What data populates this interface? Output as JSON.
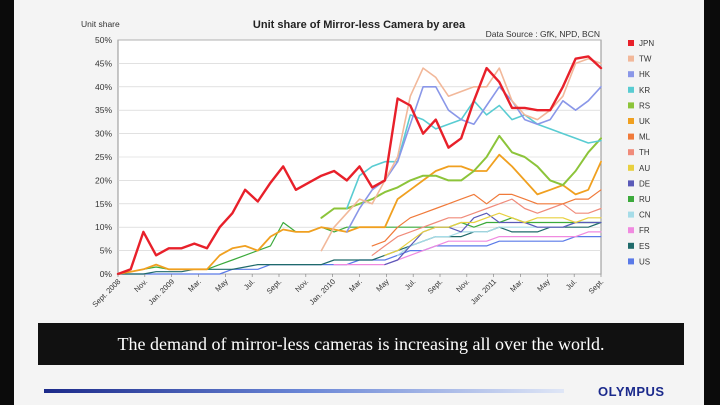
{
  "caption": "The demand of mirror-less cameras is increasing all over the world.",
  "brand": "OLYMPUS",
  "chart_data": {
    "type": "line",
    "title": "Unit share of Mirror-less Camera by area",
    "source": "Data Source : GfK, NPD, BCN",
    "ylabel": "Unit share",
    "ylim": [
      0,
      50
    ],
    "yticks": [
      "0%",
      "5%",
      "10%",
      "15%",
      "20%",
      "25%",
      "30%",
      "35%",
      "40%",
      "45%",
      "50%"
    ],
    "x_labels": [
      "Sept. 2008",
      "Nov.",
      "Jan. 2009",
      "Mar.",
      "May",
      "Jul.",
      "Sept.",
      "Nov.",
      "Jan. 2010",
      "Mar.",
      "May",
      "Jul.",
      "Sept.",
      "Nov.",
      "Jan. 2011",
      "Mar.",
      "May",
      "Jul.",
      "Sept."
    ],
    "grid": true,
    "legend": "right",
    "series": [
      {
        "name": "JPN",
        "color": "#e8202a",
        "values": [
          0,
          1,
          9,
          4,
          5.5,
          5.5,
          6.5,
          5.5,
          10,
          13,
          18,
          15.5,
          19.5,
          23,
          18,
          19.5,
          21,
          22,
          20,
          23,
          18.5,
          20,
          37.5,
          36,
          30,
          33,
          27,
          29,
          37,
          44,
          41,
          35.5,
          35.5,
          35,
          35,
          40,
          46,
          46.5,
          44
        ]
      },
      {
        "name": "TW",
        "color": "#f2b89a",
        "values": [
          null,
          null,
          null,
          null,
          null,
          null,
          null,
          null,
          null,
          null,
          null,
          null,
          null,
          null,
          null,
          null,
          5,
          10,
          13,
          16,
          15,
          20,
          25,
          38,
          44,
          42,
          38,
          39,
          40,
          40,
          44,
          37,
          34,
          33,
          35,
          38,
          45,
          46,
          45
        ]
      },
      {
        "name": "HK",
        "color": "#8a97e8",
        "values": [
          null,
          null,
          null,
          null,
          null,
          null,
          null,
          null,
          null,
          null,
          null,
          null,
          null,
          null,
          null,
          null,
          null,
          null,
          9,
          14,
          18,
          20,
          24,
          32,
          40,
          40,
          35,
          33,
          32,
          36,
          40,
          37,
          33,
          32,
          33,
          37,
          35,
          37,
          40
        ]
      },
      {
        "name": "KR",
        "color": "#59ccd2",
        "values": [
          null,
          null,
          null,
          null,
          null,
          null,
          null,
          null,
          null,
          null,
          null,
          null,
          null,
          null,
          null,
          null,
          null,
          null,
          14,
          21,
          23,
          24,
          24,
          34,
          33,
          31,
          32,
          33,
          37,
          34,
          36,
          33,
          34,
          32,
          31,
          30,
          29,
          28,
          28.5
        ]
      },
      {
        "name": "RS",
        "color": "#8cc43a",
        "values": [
          null,
          null,
          null,
          null,
          null,
          null,
          null,
          null,
          null,
          null,
          null,
          null,
          null,
          null,
          null,
          null,
          12,
          14,
          14,
          15,
          16,
          17.5,
          18.5,
          20,
          21,
          21,
          20,
          20,
          22,
          25,
          29.5,
          26,
          25,
          23,
          20,
          19,
          22,
          26,
          29
        ]
      },
      {
        "name": "UK",
        "color": "#f0a020",
        "values": [
          0,
          0.5,
          1,
          2,
          1,
          1,
          1,
          1,
          4,
          5.5,
          6,
          5,
          8,
          9.5,
          9,
          9,
          10,
          9.5,
          9,
          10,
          10,
          10,
          16,
          18,
          20,
          22,
          23,
          23,
          22,
          22,
          25.5,
          23,
          20,
          17,
          18,
          19,
          17,
          18,
          24
        ]
      },
      {
        "name": "ML",
        "color": "#f07a3a",
        "values": [
          null,
          null,
          null,
          null,
          null,
          null,
          null,
          null,
          null,
          null,
          null,
          null,
          null,
          null,
          null,
          null,
          null,
          null,
          null,
          null,
          6,
          7,
          10,
          12,
          13,
          14,
          15,
          16,
          17,
          15,
          17,
          17,
          16,
          15,
          15,
          15,
          16,
          16,
          18
        ]
      },
      {
        "name": "TH",
        "color": "#f08b7a",
        "values": [
          null,
          null,
          null,
          null,
          null,
          null,
          null,
          null,
          null,
          null,
          null,
          null,
          null,
          null,
          null,
          null,
          null,
          null,
          null,
          null,
          4,
          6,
          8,
          9,
          10,
          11,
          12,
          12,
          13,
          14,
          15,
          16,
          14,
          13,
          14,
          15,
          13,
          13,
          14
        ]
      },
      {
        "name": "AU",
        "color": "#e8d040",
        "values": [
          null,
          null,
          null,
          null,
          null,
          null,
          null,
          null,
          null,
          null,
          null,
          null,
          null,
          null,
          null,
          null,
          null,
          null,
          null,
          null,
          null,
          4,
          5,
          7,
          9,
          10,
          10,
          11,
          11,
          12,
          13,
          12,
          11,
          12,
          12,
          12,
          11,
          12,
          12
        ]
      },
      {
        "name": "DE",
        "color": "#5a5ab8",
        "values": [
          null,
          null,
          null,
          null,
          null,
          null,
          null,
          null,
          null,
          null,
          null,
          null,
          null,
          null,
          null,
          null,
          null,
          null,
          null,
          null,
          null,
          2,
          3,
          6,
          9,
          10,
          10,
          9,
          12,
          13,
          11,
          11,
          11,
          10,
          10,
          10,
          11,
          11,
          11
        ]
      },
      {
        "name": "RU",
        "color": "#3caa3c",
        "values": [
          0,
          0.5,
          1,
          1.5,
          1,
          1,
          1,
          1,
          2,
          3,
          4,
          5,
          6,
          11,
          9,
          9,
          10,
          9,
          10,
          10,
          10,
          10,
          10,
          10,
          10,
          10,
          10,
          11,
          10,
          11,
          11,
          12,
          11,
          11,
          11,
          11,
          11,
          11,
          11
        ]
      },
      {
        "name": "CN",
        "color": "#a6dce8",
        "values": [
          null,
          null,
          null,
          null,
          null,
          null,
          null,
          null,
          null,
          null,
          null,
          null,
          null,
          null,
          null,
          null,
          null,
          null,
          null,
          null,
          null,
          null,
          4,
          6,
          7,
          8,
          8,
          9,
          9,
          9,
          10,
          10,
          10,
          10,
          10,
          10,
          11,
          11,
          11
        ]
      },
      {
        "name": "FR",
        "color": "#f08ae0",
        "values": [
          null,
          null,
          null,
          null,
          null,
          null,
          null,
          null,
          null,
          null,
          null,
          null,
          null,
          null,
          null,
          null,
          null,
          2,
          2,
          2,
          2,
          2,
          3,
          4,
          5,
          6,
          7,
          7,
          7,
          7,
          8,
          8,
          8,
          8,
          8,
          8,
          8,
          9,
          9
        ]
      },
      {
        "name": "ES",
        "color": "#1f6a6a",
        "values": [
          0,
          0,
          0,
          0.5,
          0.5,
          0.5,
          1,
          1,
          1,
          1,
          1.5,
          2,
          2,
          2,
          2,
          2,
          2,
          3,
          3,
          3,
          3,
          4,
          5,
          6,
          7,
          8,
          8,
          8,
          9,
          9,
          10,
          9,
          9,
          9,
          10,
          10,
          10,
          10,
          11
        ]
      },
      {
        "name": "US",
        "color": "#5a7ae8",
        "values": [
          0,
          0,
          0,
          0,
          0,
          0,
          0,
          0,
          0,
          1,
          1,
          1,
          2,
          2,
          2,
          2,
          2,
          2,
          2,
          3,
          3,
          3,
          4,
          5,
          5,
          6,
          6,
          6,
          6,
          6,
          7,
          7,
          7,
          7,
          7,
          7,
          8,
          8,
          8
        ]
      }
    ]
  }
}
